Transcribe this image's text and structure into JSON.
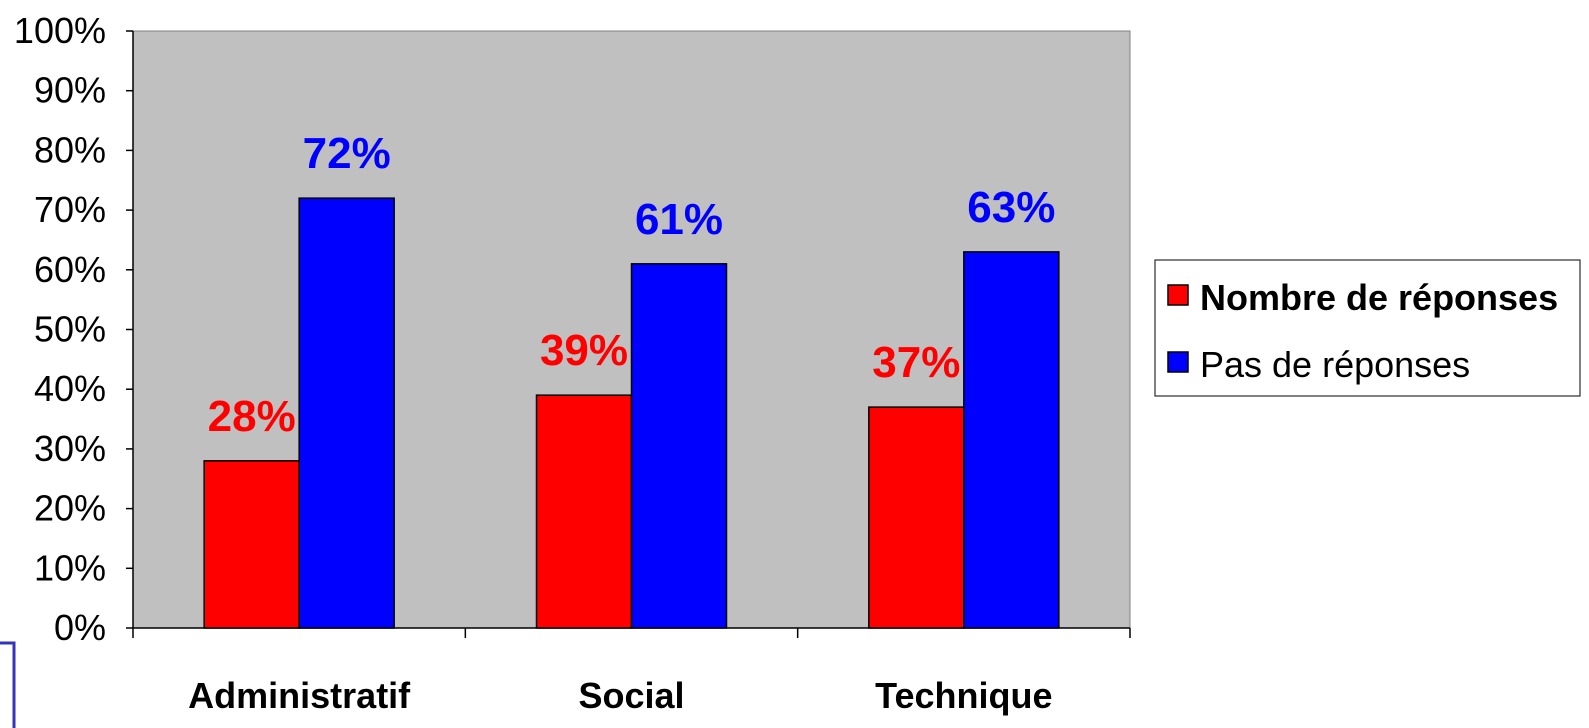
{
  "chart_data": {
    "type": "bar",
    "categories": [
      "Administratif",
      "Social",
      "Technique"
    ],
    "series": [
      {
        "name": "Nombre de réponses",
        "values": [
          28,
          39,
          37
        ],
        "labels": [
          "28%",
          "39%",
          "37%"
        ],
        "color": "#ff0000"
      },
      {
        "name": "Pas de réponses",
        "values": [
          72,
          61,
          63
        ],
        "labels": [
          "72%",
          "61%",
          "63%"
        ],
        "color": "#0000ff"
      }
    ],
    "ylim": [
      0,
      100
    ],
    "yticks": [
      "0%",
      "10%",
      "20%",
      "30%",
      "40%",
      "50%",
      "60%",
      "70%",
      "80%",
      "90%",
      "100%"
    ],
    "plot_background": "#c0c0c0",
    "grid": false,
    "legend": {
      "placement": "right"
    }
  }
}
